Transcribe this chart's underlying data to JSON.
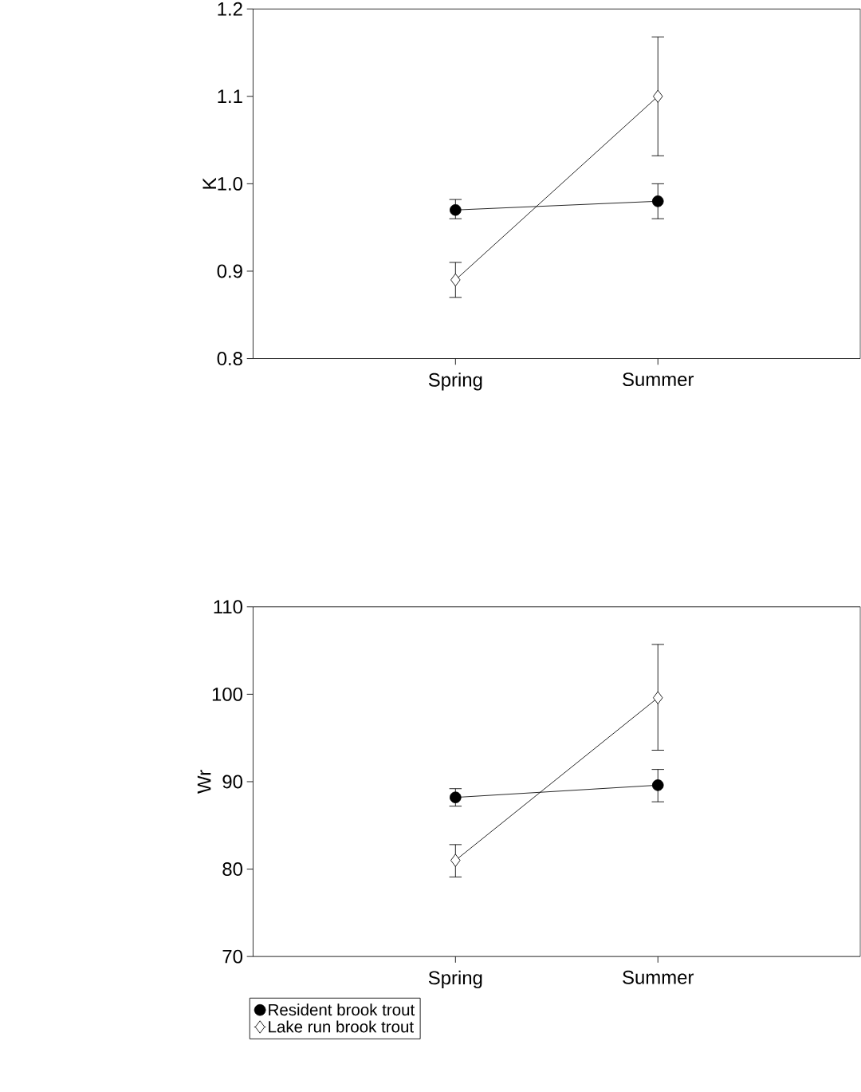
{
  "chart_data": [
    {
      "type": "line",
      "ylabel": "K",
      "categories": [
        "Spring",
        "Summer"
      ],
      "ylim": [
        0.8,
        1.2
      ],
      "yticks": [
        0.8,
        0.9,
        {
          "value": 1.0,
          "label": "1.0"
        },
        1.1,
        1.2
      ],
      "series": [
        {
          "color": "#000000",
          "marker": "circle",
          "values": [
            0.97,
            0.98
          ],
          "errors": [
            [
              0.96,
              0.982
            ],
            [
              0.96,
              1.0
            ]
          ]
        },
        {
          "color": "#000000",
          "marker": "diamond",
          "values": [
            0.89,
            1.1
          ],
          "errors": [
            [
              0.87,
              0.91
            ],
            [
              1.032,
              1.168
            ]
          ]
        }
      ]
    },
    {
      "type": "line",
      "ylabel": "Wr",
      "categories": [
        "Spring",
        "Summer"
      ],
      "ylim": [
        70,
        110
      ],
      "yticks": [
        70,
        80,
        90,
        100,
        110
      ],
      "legend": "bottom left",
      "series": [
        {
          "name": "Resident brook trout",
          "color": "#000000",
          "marker": "circle",
          "values": [
            88.2,
            89.6
          ],
          "errors": [
            [
              87.2,
              89.2
            ],
            [
              87.7,
              91.4
            ]
          ]
        },
        {
          "name": "Lake run brook trout",
          "color": "#000000",
          "marker": "diamond",
          "values": [
            81.0,
            99.6
          ],
          "errors": [
            [
              79.1,
              82.8
            ],
            [
              93.6,
              105.7
            ]
          ]
        }
      ]
    }
  ]
}
